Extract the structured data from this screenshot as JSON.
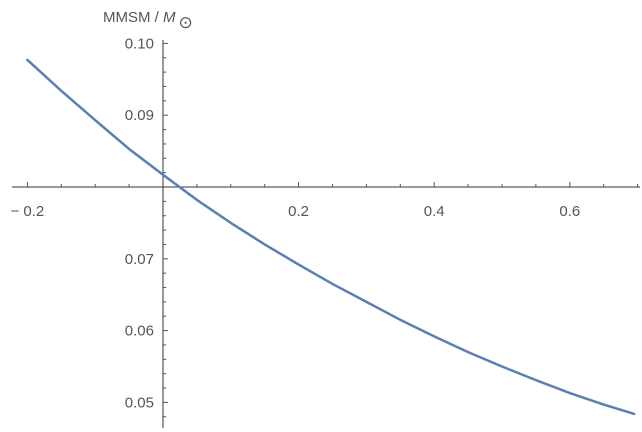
{
  "chart_data": {
    "type": "line",
    "title": "",
    "xlabel": "",
    "ylabel": "MMSM / M☉",
    "ylabel_parts": {
      "text": "MMSM / ",
      "symbol": "M",
      "subscript": "⊙"
    },
    "xlim": [
      -0.2,
      0.7
    ],
    "ylim": [
      0.0475,
      0.1
    ],
    "x_axis_crossing_y": 0.08,
    "x_ticks": [
      {
        "value": -0.2,
        "label": "− 0.2"
      },
      {
        "value": 0.2,
        "label": "0.2"
      },
      {
        "value": 0.4,
        "label": "0.4"
      },
      {
        "value": 0.6,
        "label": "0.6"
      }
    ],
    "y_ticks": [
      {
        "value": 0.05,
        "label": "0.05"
      },
      {
        "value": 0.06,
        "label": "0.06"
      },
      {
        "value": 0.07,
        "label": "0.07"
      },
      {
        "value": 0.09,
        "label": "0.09"
      },
      {
        "value": 0.1,
        "label": "0.10"
      }
    ],
    "grid": false,
    "series": [
      {
        "color": "#5a7eb5",
        "x": [
          -0.2,
          -0.15,
          -0.1,
          -0.05,
          0.0,
          0.05,
          0.1,
          0.15,
          0.2,
          0.25,
          0.3,
          0.35,
          0.4,
          0.45,
          0.5,
          0.55,
          0.6,
          0.65,
          0.695
        ],
        "y": [
          0.0977,
          0.0934,
          0.0893,
          0.0853,
          0.0817,
          0.0782,
          0.075,
          0.072,
          0.0692,
          0.0665,
          0.064,
          0.0615,
          0.0592,
          0.057,
          0.055,
          0.0531,
          0.0513,
          0.0497,
          0.0484
        ]
      }
    ]
  }
}
